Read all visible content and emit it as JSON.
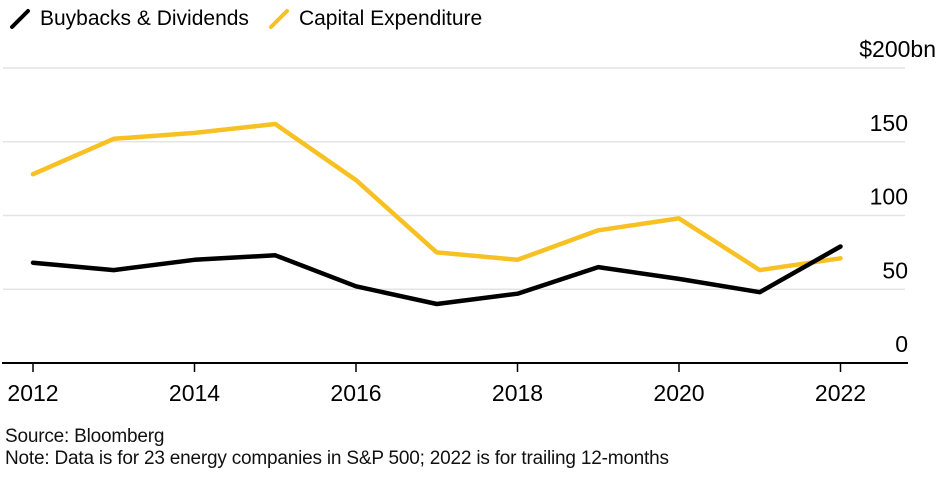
{
  "legend": [
    {
      "label": "Buybacks & Dividends",
      "color": "#000000"
    },
    {
      "label": "Capital Expenditure",
      "color": "#F7C123"
    }
  ],
  "footer": {
    "source": "Source: Bloomberg",
    "note": "Note: Data is for 23 energy companies in S&P 500; 2022 is for trailing 12-months"
  },
  "chart_data": {
    "type": "line",
    "title": "",
    "x": [
      2012,
      2013,
      2014,
      2015,
      2016,
      2017,
      2018,
      2019,
      2020,
      2021,
      2022
    ],
    "series": [
      {
        "name": "Buybacks & Dividends",
        "color": "#000000",
        "values": [
          68,
          63,
          70,
          73,
          52,
          40,
          47,
          65,
          57,
          48,
          79
        ]
      },
      {
        "name": "Capital Expenditure",
        "color": "#F7C123",
        "values": [
          128,
          152,
          156,
          162,
          124,
          75,
          70,
          90,
          98,
          63,
          71
        ]
      }
    ],
    "unit": "$bn",
    "ylim": [
      0,
      200
    ],
    "y_axis": {
      "side": "right",
      "ticks": [
        200,
        150,
        100,
        50,
        0
      ],
      "tick_labels": [
        "$200bn",
        "150",
        "100",
        "50",
        "0"
      ]
    },
    "x_axis": {
      "ticks": [
        2012,
        2014,
        2016,
        2018,
        2020,
        2022
      ],
      "tick_labels": [
        "2012",
        "2014",
        "2016",
        "2018",
        "2020",
        "2022"
      ]
    },
    "grid": "horizontal",
    "legend_position": "top-left"
  },
  "colors": {
    "grid": "#E4E4E4",
    "axis": "#000000",
    "tick_text": "#000000"
  }
}
